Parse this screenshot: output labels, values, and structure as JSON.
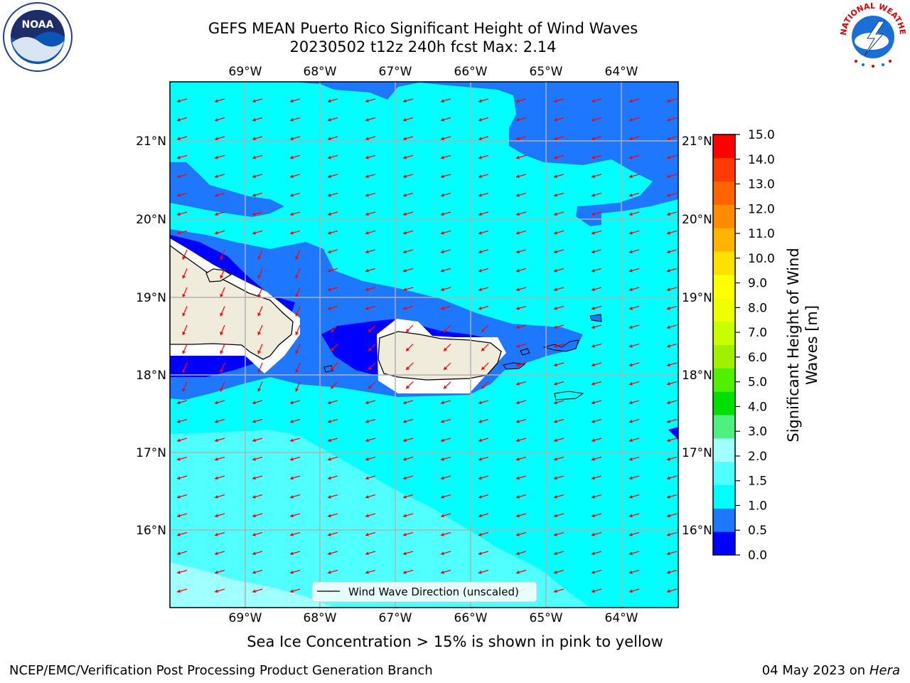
{
  "title": {
    "line1": "GEFS MEAN Puerto Rico Significant Height of Wind Waves",
    "line2": "20230502 t12z 240h fcst   Max: 2.14"
  },
  "logos": {
    "noaa_text": "NOAA",
    "noaa_ring": "NATIONAL OCEANIC AND ATMOSPHERIC ADMINISTRATION · U.S. DEPARTMENT OF COMMERCE",
    "nws_ring": "NATIONAL WEATHER SERVICE"
  },
  "map": {
    "lon_labels": [
      "69°W",
      "68°W",
      "67°W",
      "66°W",
      "65°W",
      "64°W"
    ],
    "lat_labels": [
      "21°N",
      "20°N",
      "19°N",
      "18°N",
      "17°N",
      "16°N"
    ],
    "legend_label": "Wind Wave Direction (unscaled)",
    "arrow_color": "#ff0000",
    "coast_color": "#000000",
    "land_color": "#efecdc"
  },
  "colorbar": {
    "label": "Significant Height of Wind Waves [m]",
    "label_line1": "Significant Height of Wind",
    "label_line2": "Waves [m]",
    "ticks": [
      "0.0",
      "0.5",
      "1.0",
      "1.5",
      "2.0",
      "3.0",
      "4.0",
      "5.0",
      "6.0",
      "7.0",
      "8.0",
      "9.0",
      "10.0",
      "11.0",
      "12.0",
      "13.0",
      "14.0",
      "15.0"
    ],
    "colors": [
      "#0000ff",
      "#1e78ff",
      "#00ffff",
      "#50ffff",
      "#a0ffff",
      "#50f080",
      "#00e000",
      "#50f000",
      "#a0f000",
      "#c8ff00",
      "#f0ff00",
      "#ffff00",
      "#ffe000",
      "#ffb400",
      "#ff8c00",
      "#ff6400",
      "#ff3c00",
      "#ff0000"
    ]
  },
  "caption": "Sea Ice Concentration > 15% is shown in pink to yellow",
  "footer": {
    "left": "NCEP/EMC/Verification Post Processing Product Generation Branch",
    "right_date": "04 May 2023 on",
    "right_host": "Hera"
  }
}
